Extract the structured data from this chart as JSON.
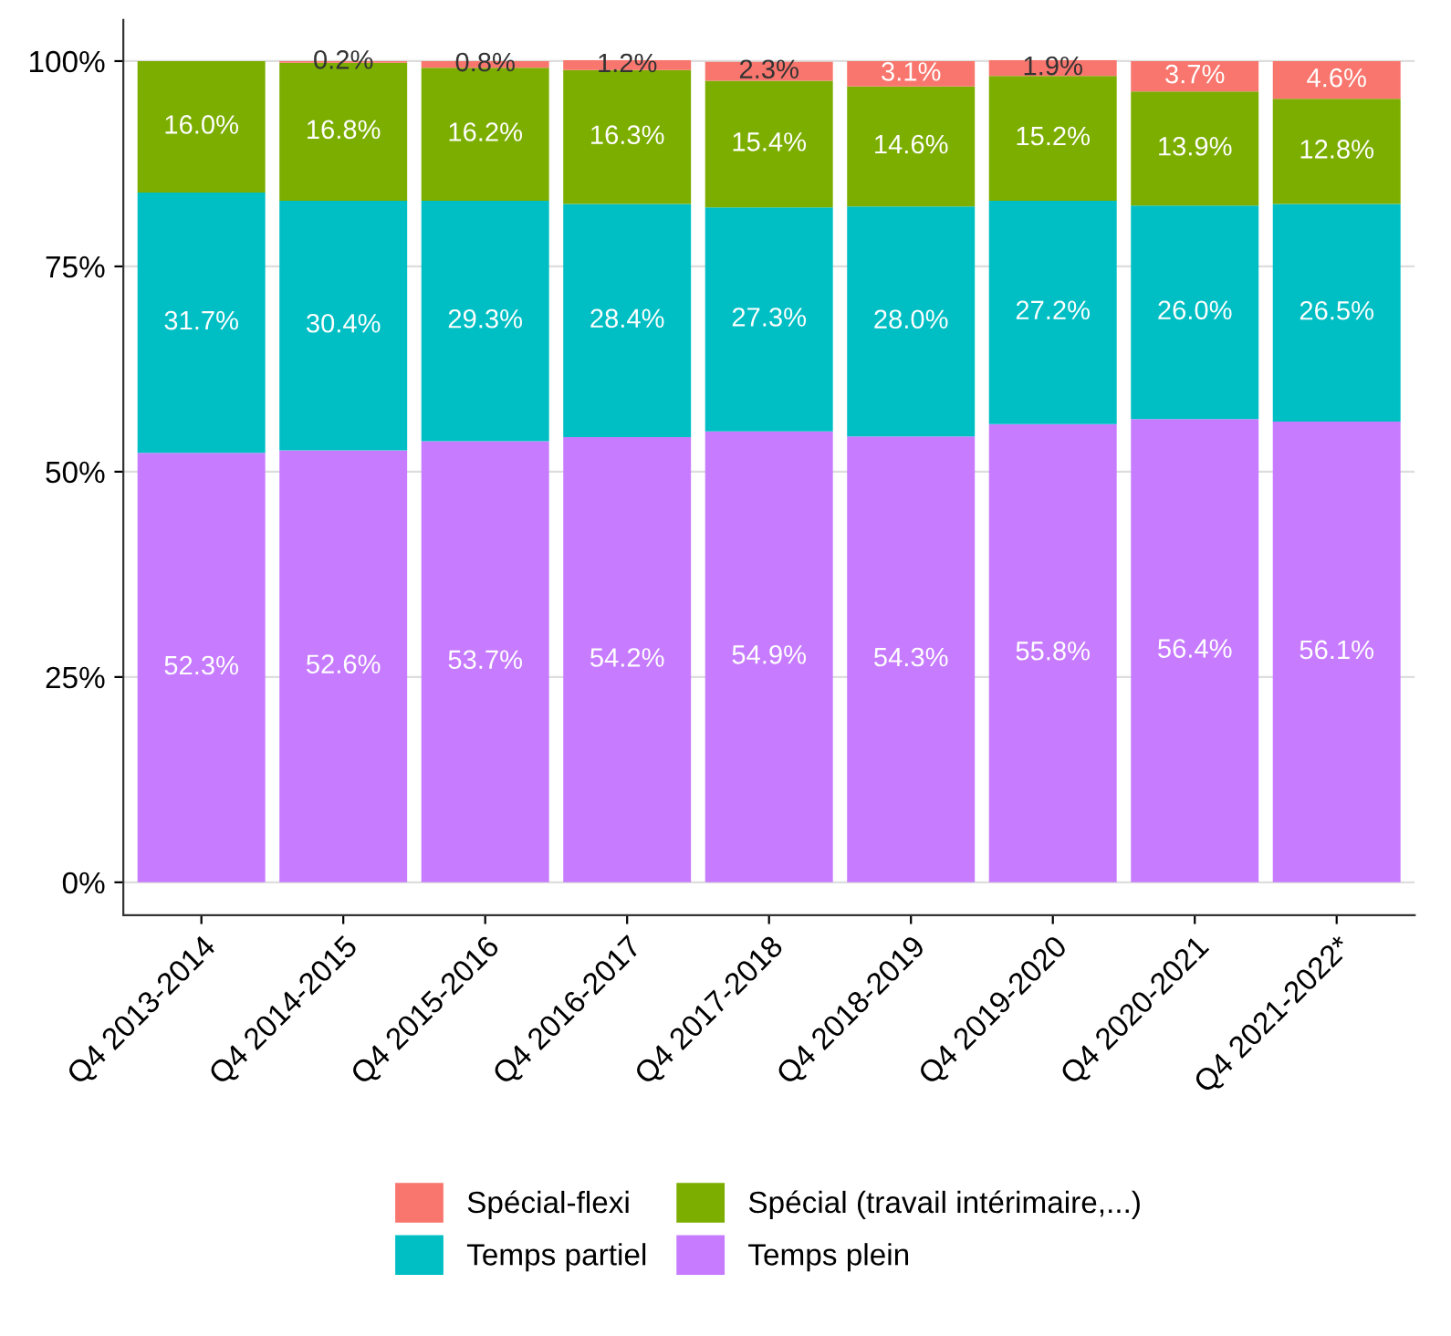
{
  "chart_data": {
    "type": "bar",
    "stacked": true,
    "categories": [
      "Q4 2013-2014",
      "Q4 2014-2015",
      "Q4 2015-2016",
      "Q4 2016-2017",
      "Q4 2017-2018",
      "Q4 2018-2019",
      "Q4 2019-2020",
      "Q4 2020-2021",
      "Q4 2021-2022*"
    ],
    "series": [
      {
        "name": "Temps plein",
        "color": "#c77cff",
        "values": [
          52.3,
          52.6,
          53.7,
          54.2,
          54.9,
          54.3,
          55.8,
          56.4,
          56.1
        ],
        "value_labels": [
          "52.3%",
          "52.6%",
          "53.7%",
          "54.2%",
          "54.9%",
          "54.3%",
          "55.8%",
          "56.4%",
          "56.1%"
        ]
      },
      {
        "name": "Temps partiel",
        "color": "#00bfc4",
        "values": [
          31.7,
          30.4,
          29.3,
          28.4,
          27.3,
          28.0,
          27.2,
          26.0,
          26.5
        ],
        "value_labels": [
          "31.7%",
          "30.4%",
          "29.3%",
          "28.4%",
          "27.3%",
          "28.0%",
          "27.2%",
          "26.0%",
          "26.5%"
        ]
      },
      {
        "name": "Spécial (travail intérimaire,...)",
        "color": "#7cae00",
        "values": [
          16.0,
          16.8,
          16.2,
          16.3,
          15.4,
          14.6,
          15.2,
          13.9,
          12.8
        ],
        "value_labels": [
          "16.0%",
          "16.8%",
          "16.2%",
          "16.3%",
          "15.4%",
          "14.6%",
          "15.2%",
          "13.9%",
          "12.8%"
        ]
      },
      {
        "name": "Spécial-flexi",
        "color": "#f8766d",
        "values": [
          null,
          0.2,
          0.8,
          1.2,
          2.3,
          3.1,
          1.9,
          3.7,
          4.6
        ],
        "value_labels": [
          null,
          "0.2%",
          "0.8%",
          "1.2%",
          "2.3%",
          "3.1%",
          "1.9%",
          "3.7%",
          "4.6%"
        ]
      }
    ],
    "ylim": [
      -4,
      105
    ],
    "yticks": [
      {
        "value": 0,
        "label": "0%"
      },
      {
        "value": 25,
        "label": "25%"
      },
      {
        "value": 50,
        "label": "50%"
      },
      {
        "value": 75,
        "label": "75%"
      },
      {
        "value": 100,
        "label": "100%"
      }
    ],
    "grid": "y",
    "legend": "bottom"
  }
}
